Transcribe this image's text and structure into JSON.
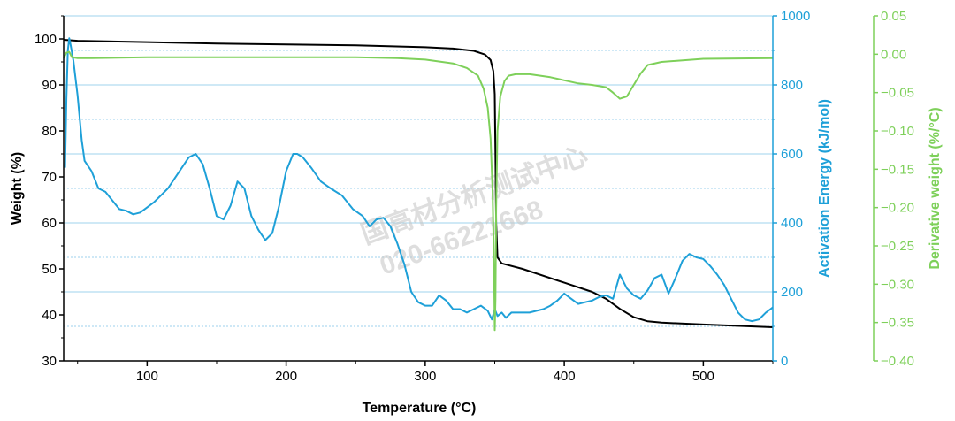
{
  "watermark": {
    "line1": "国高材分析测试中心",
    "line2": "020-66221668"
  },
  "colors": {
    "weight": "#000000",
    "activation": "#1ea0d8",
    "derivative": "#7ed05a",
    "axis": "#000000",
    "grid": "#7fc4e6",
    "watermark": "#c8c8c8"
  },
  "chart_data": {
    "type": "line",
    "xlabel": "Temperature (°C)",
    "xlim": [
      40,
      550
    ],
    "x_ticks": [
      100,
      200,
      300,
      400,
      500
    ],
    "grid": "horizontal lines at right-axis ticks",
    "axes": {
      "left": {
        "label": "Weight (%)",
        "lim": [
          30,
          105
        ],
        "ticks": [
          30,
          40,
          50,
          60,
          70,
          80,
          90,
          100
        ],
        "color": "#000000"
      },
      "right1": {
        "label": "Activation Energy (kJ/mol)",
        "lim": [
          0,
          1000
        ],
        "ticks": [
          0,
          200,
          400,
          600,
          800,
          1000
        ],
        "color": "#1ea0d8"
      },
      "right2": {
        "label": "Derivative weight (%/°C)",
        "lim": [
          -0.4,
          0.05
        ],
        "ticks": [
          "0.05",
          "0.00",
          "-0.05",
          "-0.10",
          "-0.15",
          "-0.20",
          "-0.25",
          "-0.30",
          "-0.35",
          "-0.40"
        ],
        "color": "#7ed05a"
      }
    },
    "series": [
      {
        "key": "weight",
        "axis": "left",
        "x": [
          40,
          50,
          100,
          150,
          200,
          250,
          300,
          320,
          335,
          343,
          347,
          349,
          350,
          350.5,
          351,
          352,
          355,
          370,
          400,
          420,
          430,
          440,
          450,
          460,
          470,
          500,
          550
        ],
        "y": [
          99.8,
          99.6,
          99.3,
          99.0,
          98.8,
          98.6,
          98.2,
          97.9,
          97.4,
          96.6,
          95.4,
          93.0,
          88.0,
          75.0,
          60.0,
          52.5,
          51.2,
          50.0,
          47.0,
          45.0,
          43.5,
          41.3,
          39.5,
          38.6,
          38.3,
          37.9,
          37.3
        ]
      },
      {
        "key": "activation",
        "axis": "right1",
        "x": [
          41,
          42,
          43,
          44,
          45,
          47,
          50,
          53,
          55,
          60,
          65,
          70,
          75,
          80,
          85,
          90,
          95,
          100,
          105,
          110,
          115,
          120,
          125,
          130,
          135,
          140,
          145,
          150,
          155,
          160,
          165,
          170,
          175,
          180,
          185,
          190,
          195,
          200,
          205,
          208,
          212,
          218,
          225,
          232,
          240,
          248,
          255,
          260,
          265,
          270,
          275,
          280,
          285,
          290,
          295,
          300,
          305,
          310,
          315,
          320,
          325,
          330,
          335,
          340,
          345,
          348,
          350,
          352,
          355,
          358,
          362,
          366,
          370,
          375,
          380,
          385,
          390,
          395,
          400,
          405,
          410,
          415,
          420,
          425,
          430,
          435,
          440,
          445,
          450,
          455,
          460,
          465,
          470,
          475,
          480,
          485,
          490,
          495,
          500,
          505,
          510,
          515,
          520,
          525,
          530,
          535,
          540,
          545,
          550
        ],
        "y": [
          560,
          760,
          900,
          935,
          915,
          870,
          770,
          640,
          580,
          550,
          500,
          490,
          465,
          440,
          435,
          425,
          430,
          445,
          460,
          480,
          500,
          530,
          560,
          590,
          600,
          570,
          500,
          420,
          410,
          450,
          520,
          500,
          420,
          380,
          350,
          370,
          450,
          550,
          600,
          600,
          590,
          560,
          520,
          500,
          480,
          440,
          420,
          390,
          410,
          415,
          390,
          340,
          280,
          200,
          170,
          160,
          160,
          190,
          175,
          150,
          150,
          140,
          150,
          160,
          145,
          120,
          150,
          130,
          140,
          125,
          140,
          140,
          140,
          140,
          145,
          150,
          160,
          175,
          195,
          180,
          165,
          170,
          175,
          185,
          190,
          180,
          250,
          210,
          190,
          180,
          205,
          240,
          250,
          195,
          240,
          290,
          310,
          300,
          295,
          275,
          250,
          220,
          180,
          140,
          120,
          115,
          120,
          140,
          155
        ]
      },
      {
        "key": "derivative",
        "axis": "right2",
        "x": [
          40,
          42,
          44,
          46,
          50,
          60,
          100,
          150,
          200,
          250,
          280,
          300,
          320,
          330,
          338,
          342,
          345,
          347,
          348.5,
          349.5,
          350,
          350.5,
          351,
          352,
          354,
          357,
          360,
          365,
          375,
          390,
          400,
          410,
          420,
          430,
          435,
          440,
          445,
          450,
          455,
          460,
          470,
          500,
          550
        ],
        "y": [
          -0.005,
          0.002,
          0.003,
          -0.004,
          -0.005,
          -0.005,
          -0.004,
          -0.004,
          -0.004,
          -0.004,
          -0.005,
          -0.007,
          -0.012,
          -0.018,
          -0.028,
          -0.045,
          -0.07,
          -0.11,
          -0.18,
          -0.28,
          -0.36,
          -0.32,
          -0.2,
          -0.1,
          -0.055,
          -0.035,
          -0.028,
          -0.026,
          -0.026,
          -0.03,
          -0.034,
          -0.038,
          -0.04,
          -0.043,
          -0.05,
          -0.058,
          -0.055,
          -0.04,
          -0.025,
          -0.014,
          -0.01,
          -0.006,
          -0.005
        ]
      }
    ]
  }
}
